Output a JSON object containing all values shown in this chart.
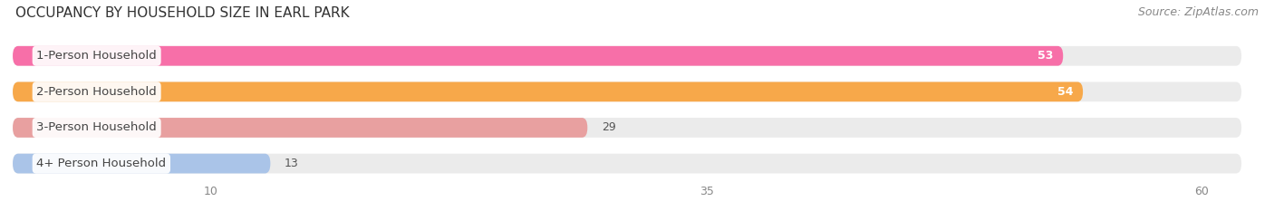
{
  "title": "OCCUPANCY BY HOUSEHOLD SIZE IN EARL PARK",
  "source": "Source: ZipAtlas.com",
  "categories": [
    "1-Person Household",
    "2-Person Household",
    "3-Person Household",
    "4+ Person Household"
  ],
  "values": [
    53,
    54,
    29,
    13
  ],
  "bar_colors": [
    "#f76fa8",
    "#f7a84a",
    "#e8a0a0",
    "#aac4e8"
  ],
  "bar_bg_color": "#ebebeb",
  "xticks": [
    10,
    35,
    60
  ],
  "xlim": [
    0,
    63
  ],
  "title_fontsize": 11,
  "source_fontsize": 9,
  "label_fontsize": 9.5,
  "value_fontsize": 9,
  "tick_fontsize": 9,
  "background_color": "#ffffff",
  "bar_bg_full": 62
}
